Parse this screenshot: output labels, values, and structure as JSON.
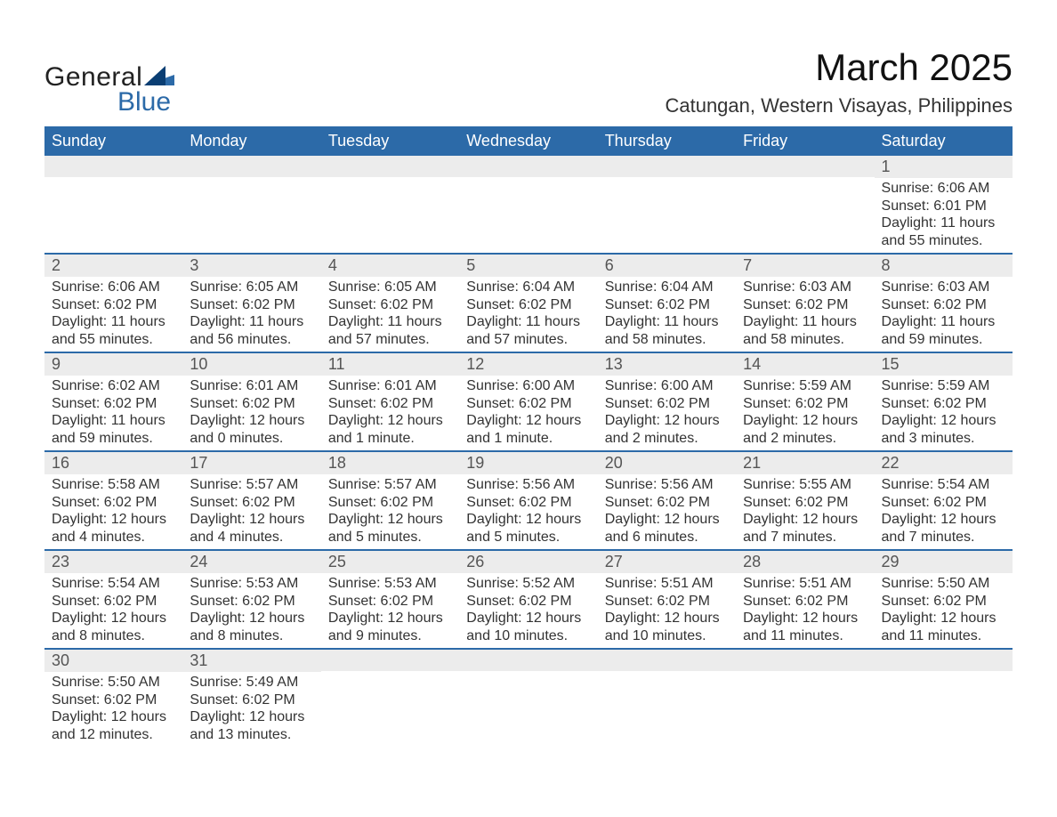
{
  "brand": {
    "name1": "General",
    "name2": "Blue",
    "accent": "#2c6aa8"
  },
  "title": "March 2025",
  "location": "Catungan, Western Visayas, Philippines",
  "colors": {
    "header_bg": "#2c6aa8",
    "header_text": "#ffffff",
    "daynum_bg": "#ececec",
    "row_border": "#2c6aa8",
    "text": "#333333",
    "background": "#ffffff"
  },
  "typography": {
    "title_fontsize_pt": 32,
    "location_fontsize_pt": 17,
    "header_fontsize_pt": 14,
    "daynum_fontsize_pt": 14,
    "body_fontsize_pt": 12
  },
  "layout": {
    "columns": 7,
    "start_weekday": "Sunday"
  },
  "weekdays": [
    "Sunday",
    "Monday",
    "Tuesday",
    "Wednesday",
    "Thursday",
    "Friday",
    "Saturday"
  ],
  "weeks": [
    [
      null,
      null,
      null,
      null,
      null,
      null,
      {
        "num": "1",
        "sunrise": "Sunrise: 6:06 AM",
        "sunset": "Sunset: 6:01 PM",
        "daylight1": "Daylight: 11 hours",
        "daylight2": "and 55 minutes."
      }
    ],
    [
      {
        "num": "2",
        "sunrise": "Sunrise: 6:06 AM",
        "sunset": "Sunset: 6:02 PM",
        "daylight1": "Daylight: 11 hours",
        "daylight2": "and 55 minutes."
      },
      {
        "num": "3",
        "sunrise": "Sunrise: 6:05 AM",
        "sunset": "Sunset: 6:02 PM",
        "daylight1": "Daylight: 11 hours",
        "daylight2": "and 56 minutes."
      },
      {
        "num": "4",
        "sunrise": "Sunrise: 6:05 AM",
        "sunset": "Sunset: 6:02 PM",
        "daylight1": "Daylight: 11 hours",
        "daylight2": "and 57 minutes."
      },
      {
        "num": "5",
        "sunrise": "Sunrise: 6:04 AM",
        "sunset": "Sunset: 6:02 PM",
        "daylight1": "Daylight: 11 hours",
        "daylight2": "and 57 minutes."
      },
      {
        "num": "6",
        "sunrise": "Sunrise: 6:04 AM",
        "sunset": "Sunset: 6:02 PM",
        "daylight1": "Daylight: 11 hours",
        "daylight2": "and 58 minutes."
      },
      {
        "num": "7",
        "sunrise": "Sunrise: 6:03 AM",
        "sunset": "Sunset: 6:02 PM",
        "daylight1": "Daylight: 11 hours",
        "daylight2": "and 58 minutes."
      },
      {
        "num": "8",
        "sunrise": "Sunrise: 6:03 AM",
        "sunset": "Sunset: 6:02 PM",
        "daylight1": "Daylight: 11 hours",
        "daylight2": "and 59 minutes."
      }
    ],
    [
      {
        "num": "9",
        "sunrise": "Sunrise: 6:02 AM",
        "sunset": "Sunset: 6:02 PM",
        "daylight1": "Daylight: 11 hours",
        "daylight2": "and 59 minutes."
      },
      {
        "num": "10",
        "sunrise": "Sunrise: 6:01 AM",
        "sunset": "Sunset: 6:02 PM",
        "daylight1": "Daylight: 12 hours",
        "daylight2": "and 0 minutes."
      },
      {
        "num": "11",
        "sunrise": "Sunrise: 6:01 AM",
        "sunset": "Sunset: 6:02 PM",
        "daylight1": "Daylight: 12 hours",
        "daylight2": "and 1 minute."
      },
      {
        "num": "12",
        "sunrise": "Sunrise: 6:00 AM",
        "sunset": "Sunset: 6:02 PM",
        "daylight1": "Daylight: 12 hours",
        "daylight2": "and 1 minute."
      },
      {
        "num": "13",
        "sunrise": "Sunrise: 6:00 AM",
        "sunset": "Sunset: 6:02 PM",
        "daylight1": "Daylight: 12 hours",
        "daylight2": "and 2 minutes."
      },
      {
        "num": "14",
        "sunrise": "Sunrise: 5:59 AM",
        "sunset": "Sunset: 6:02 PM",
        "daylight1": "Daylight: 12 hours",
        "daylight2": "and 2 minutes."
      },
      {
        "num": "15",
        "sunrise": "Sunrise: 5:59 AM",
        "sunset": "Sunset: 6:02 PM",
        "daylight1": "Daylight: 12 hours",
        "daylight2": "and 3 minutes."
      }
    ],
    [
      {
        "num": "16",
        "sunrise": "Sunrise: 5:58 AM",
        "sunset": "Sunset: 6:02 PM",
        "daylight1": "Daylight: 12 hours",
        "daylight2": "and 4 minutes."
      },
      {
        "num": "17",
        "sunrise": "Sunrise: 5:57 AM",
        "sunset": "Sunset: 6:02 PM",
        "daylight1": "Daylight: 12 hours",
        "daylight2": "and 4 minutes."
      },
      {
        "num": "18",
        "sunrise": "Sunrise: 5:57 AM",
        "sunset": "Sunset: 6:02 PM",
        "daylight1": "Daylight: 12 hours",
        "daylight2": "and 5 minutes."
      },
      {
        "num": "19",
        "sunrise": "Sunrise: 5:56 AM",
        "sunset": "Sunset: 6:02 PM",
        "daylight1": "Daylight: 12 hours",
        "daylight2": "and 5 minutes."
      },
      {
        "num": "20",
        "sunrise": "Sunrise: 5:56 AM",
        "sunset": "Sunset: 6:02 PM",
        "daylight1": "Daylight: 12 hours",
        "daylight2": "and 6 minutes."
      },
      {
        "num": "21",
        "sunrise": "Sunrise: 5:55 AM",
        "sunset": "Sunset: 6:02 PM",
        "daylight1": "Daylight: 12 hours",
        "daylight2": "and 7 minutes."
      },
      {
        "num": "22",
        "sunrise": "Sunrise: 5:54 AM",
        "sunset": "Sunset: 6:02 PM",
        "daylight1": "Daylight: 12 hours",
        "daylight2": "and 7 minutes."
      }
    ],
    [
      {
        "num": "23",
        "sunrise": "Sunrise: 5:54 AM",
        "sunset": "Sunset: 6:02 PM",
        "daylight1": "Daylight: 12 hours",
        "daylight2": "and 8 minutes."
      },
      {
        "num": "24",
        "sunrise": "Sunrise: 5:53 AM",
        "sunset": "Sunset: 6:02 PM",
        "daylight1": "Daylight: 12 hours",
        "daylight2": "and 8 minutes."
      },
      {
        "num": "25",
        "sunrise": "Sunrise: 5:53 AM",
        "sunset": "Sunset: 6:02 PM",
        "daylight1": "Daylight: 12 hours",
        "daylight2": "and 9 minutes."
      },
      {
        "num": "26",
        "sunrise": "Sunrise: 5:52 AM",
        "sunset": "Sunset: 6:02 PM",
        "daylight1": "Daylight: 12 hours",
        "daylight2": "and 10 minutes."
      },
      {
        "num": "27",
        "sunrise": "Sunrise: 5:51 AM",
        "sunset": "Sunset: 6:02 PM",
        "daylight1": "Daylight: 12 hours",
        "daylight2": "and 10 minutes."
      },
      {
        "num": "28",
        "sunrise": "Sunrise: 5:51 AM",
        "sunset": "Sunset: 6:02 PM",
        "daylight1": "Daylight: 12 hours",
        "daylight2": "and 11 minutes."
      },
      {
        "num": "29",
        "sunrise": "Sunrise: 5:50 AM",
        "sunset": "Sunset: 6:02 PM",
        "daylight1": "Daylight: 12 hours",
        "daylight2": "and 11 minutes."
      }
    ],
    [
      {
        "num": "30",
        "sunrise": "Sunrise: 5:50 AM",
        "sunset": "Sunset: 6:02 PM",
        "daylight1": "Daylight: 12 hours",
        "daylight2": "and 12 minutes."
      },
      {
        "num": "31",
        "sunrise": "Sunrise: 5:49 AM",
        "sunset": "Sunset: 6:02 PM",
        "daylight1": "Daylight: 12 hours",
        "daylight2": "and 13 minutes."
      },
      null,
      null,
      null,
      null,
      null
    ]
  ]
}
